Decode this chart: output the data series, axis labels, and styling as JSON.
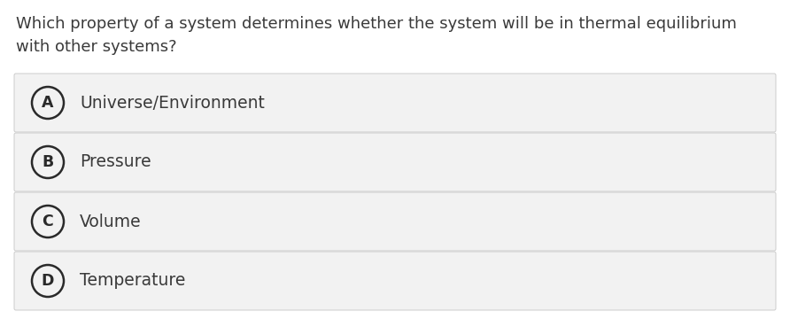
{
  "question_line1": "Which property of a system determines whether the system will be in thermal equilibrium",
  "question_line2": "with other systems?",
  "options": [
    {
      "letter": "A",
      "text": "Universe/Environment"
    },
    {
      "letter": "B",
      "text": "Pressure"
    },
    {
      "letter": "C",
      "text": "Volume"
    },
    {
      "letter": "D",
      "text": "Temperature"
    }
  ],
  "background_color": "#ffffff",
  "option_bg_color": "#f2f2f2",
  "option_border_color": "#cccccc",
  "text_color": "#3a3a3a",
  "circle_color": "#2a2a2a",
  "question_fontsize": 13.0,
  "option_fontsize": 13.5,
  "letter_fontsize": 12.5,
  "fig_width": 8.92,
  "fig_height": 3.6,
  "dpi": 100
}
